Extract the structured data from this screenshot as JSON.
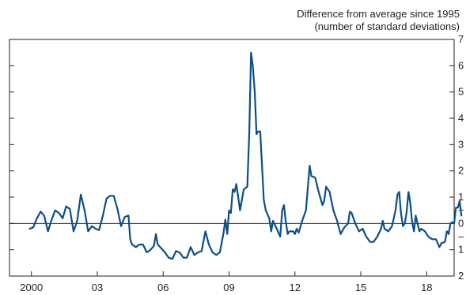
{
  "chart_data": {
    "type": "line",
    "title": "",
    "ylabel_line1": "Difference from average since 1995",
    "ylabel_line2": "(number of standard deviations)",
    "xlabel": "",
    "x_tick_labels": [
      "2000",
      "03",
      "06",
      "09",
      "12",
      "15",
      "18"
    ],
    "x_tick_years": [
      2000,
      2003,
      2006,
      2009,
      2012,
      2015,
      2018
    ],
    "xlim": [
      1999.0,
      2019.25
    ],
    "y_tick_labels": [
      "7",
      "6",
      "5",
      "4",
      "3",
      "2",
      "1",
      "+",
      "0",
      "–",
      "1",
      "2"
    ],
    "y_tick_values": [
      7,
      6,
      5,
      4,
      3,
      2,
      1,
      0.5,
      0,
      -0.5,
      -1,
      -2
    ],
    "ylim": [
      -2,
      7
    ],
    "zero_line": true,
    "line_color": "#0b4f8a",
    "series": [
      {
        "points": [
          [
            1999.92,
            -0.2
          ],
          [
            2000.08,
            -0.15
          ],
          [
            2000.25,
            0.2
          ],
          [
            2000.42,
            0.45
          ],
          [
            2000.58,
            0.3
          ],
          [
            2000.75,
            -0.3
          ],
          [
            2000.92,
            0.15
          ],
          [
            2001.08,
            0.5
          ],
          [
            2001.25,
            0.4
          ],
          [
            2001.42,
            0.2
          ],
          [
            2001.58,
            0.65
          ],
          [
            2001.75,
            0.55
          ],
          [
            2001.92,
            -0.3
          ],
          [
            2002.08,
            0.1
          ],
          [
            2002.25,
            1.1
          ],
          [
            2002.42,
            0.5
          ],
          [
            2002.58,
            -0.3
          ],
          [
            2002.75,
            -0.1
          ],
          [
            2002.92,
            -0.2
          ],
          [
            2003.08,
            -0.25
          ],
          [
            2003.25,
            0.3
          ],
          [
            2003.42,
            0.95
          ],
          [
            2003.58,
            1.05
          ],
          [
            2003.75,
            1.05
          ],
          [
            2003.92,
            0.55
          ],
          [
            2004.08,
            -0.1
          ],
          [
            2004.25,
            0.25
          ],
          [
            2004.42,
            0.3
          ],
          [
            2004.5,
            -0.6
          ],
          [
            2004.58,
            -0.8
          ],
          [
            2004.75,
            -0.9
          ],
          [
            2004.92,
            -0.8
          ],
          [
            2005.08,
            -0.8
          ],
          [
            2005.25,
            -1.1
          ],
          [
            2005.42,
            -1.0
          ],
          [
            2005.58,
            -0.85
          ],
          [
            2005.67,
            -0.4
          ],
          [
            2005.75,
            -0.8
          ],
          [
            2005.92,
            -0.95
          ],
          [
            2006.08,
            -1.1
          ],
          [
            2006.25,
            -1.3
          ],
          [
            2006.42,
            -1.35
          ],
          [
            2006.58,
            -1.05
          ],
          [
            2006.75,
            -1.1
          ],
          [
            2006.92,
            -1.3
          ],
          [
            2007.08,
            -1.3
          ],
          [
            2007.25,
            -0.9
          ],
          [
            2007.42,
            -1.2
          ],
          [
            2007.58,
            -1.1
          ],
          [
            2007.75,
            -1.05
          ],
          [
            2007.92,
            -0.3
          ],
          [
            2008.08,
            -0.8
          ],
          [
            2008.25,
            -1.1
          ],
          [
            2008.42,
            -1.2
          ],
          [
            2008.58,
            -1.1
          ],
          [
            2008.75,
            -0.35
          ],
          [
            2008.83,
            0.15
          ],
          [
            2008.92,
            -0.4
          ],
          [
            2009.0,
            0.5
          ],
          [
            2009.08,
            0.4
          ],
          [
            2009.17,
            1.3
          ],
          [
            2009.25,
            1.2
          ],
          [
            2009.33,
            1.5
          ],
          [
            2009.5,
            0.5
          ],
          [
            2009.67,
            1.3
          ],
          [
            2009.83,
            1.4
          ],
          [
            2009.92,
            3.5
          ],
          [
            2010.0,
            6.5
          ],
          [
            2010.08,
            6.0
          ],
          [
            2010.17,
            5.0
          ],
          [
            2010.25,
            3.4
          ],
          [
            2010.33,
            3.5
          ],
          [
            2010.42,
            3.5
          ],
          [
            2010.5,
            2.2
          ],
          [
            2010.58,
            0.9
          ],
          [
            2010.67,
            0.5
          ],
          [
            2010.83,
            0.2
          ],
          [
            2010.92,
            -0.3
          ],
          [
            2011.0,
            0.1
          ],
          [
            2011.17,
            -0.2
          ],
          [
            2011.33,
            -0.5
          ],
          [
            2011.42,
            0.5
          ],
          [
            2011.5,
            0.7
          ],
          [
            2011.58,
            0.1
          ],
          [
            2011.67,
            -0.4
          ],
          [
            2011.75,
            -0.3
          ],
          [
            2011.92,
            -0.3
          ],
          [
            2012.0,
            -0.4
          ],
          [
            2012.08,
            -0.2
          ],
          [
            2012.17,
            -0.35
          ],
          [
            2012.33,
            0.1
          ],
          [
            2012.5,
            0.5
          ],
          [
            2012.58,
            1.3
          ],
          [
            2012.67,
            2.2
          ],
          [
            2012.75,
            1.8
          ],
          [
            2012.92,
            1.75
          ],
          [
            2013.08,
            1.2
          ],
          [
            2013.25,
            0.7
          ],
          [
            2013.33,
            0.85
          ],
          [
            2013.42,
            1.4
          ],
          [
            2013.58,
            1.2
          ],
          [
            2013.75,
            0.5
          ],
          [
            2013.92,
            0.1
          ],
          [
            2014.08,
            -0.4
          ],
          [
            2014.25,
            -0.15
          ],
          [
            2014.42,
            0.0
          ],
          [
            2014.5,
            0.45
          ],
          [
            2014.58,
            0.4
          ],
          [
            2014.75,
            0.0
          ],
          [
            2014.92,
            -0.3
          ],
          [
            2015.08,
            -0.2
          ],
          [
            2015.25,
            -0.5
          ],
          [
            2015.42,
            -0.7
          ],
          [
            2015.58,
            -0.7
          ],
          [
            2015.75,
            -0.5
          ],
          [
            2015.92,
            -0.2
          ],
          [
            2016.0,
            0.1
          ],
          [
            2016.08,
            -0.2
          ],
          [
            2016.25,
            -0.3
          ],
          [
            2016.42,
            -0.1
          ],
          [
            2016.58,
            0.5
          ],
          [
            2016.67,
            1.1
          ],
          [
            2016.75,
            1.2
          ],
          [
            2016.83,
            0.4
          ],
          [
            2016.92,
            -0.1
          ],
          [
            2017.0,
            0.0
          ],
          [
            2017.08,
            0.4
          ],
          [
            2017.17,
            1.2
          ],
          [
            2017.25,
            0.8
          ],
          [
            2017.33,
            0.1
          ],
          [
            2017.42,
            -0.3
          ],
          [
            2017.5,
            0.3
          ],
          [
            2017.58,
            0.0
          ],
          [
            2017.67,
            -0.3
          ],
          [
            2017.75,
            -0.2
          ],
          [
            2017.92,
            -0.3
          ],
          [
            2018.08,
            -0.5
          ],
          [
            2018.25,
            -0.6
          ],
          [
            2018.42,
            -0.6
          ],
          [
            2018.58,
            -0.9
          ],
          [
            2018.67,
            -0.75
          ],
          [
            2018.83,
            -0.7
          ],
          [
            2018.92,
            -0.3
          ],
          [
            2019.0,
            -0.4
          ],
          [
            2019.08,
            0.0
          ],
          [
            2019.17,
            0.05
          ],
          [
            2019.25,
            0.0
          ],
          [
            2019.33,
            0.6
          ],
          [
            2019.42,
            0.6
          ],
          [
            2019.5,
            0.85
          ],
          [
            2019.58,
            0.3
          ]
        ]
      }
    ]
  }
}
